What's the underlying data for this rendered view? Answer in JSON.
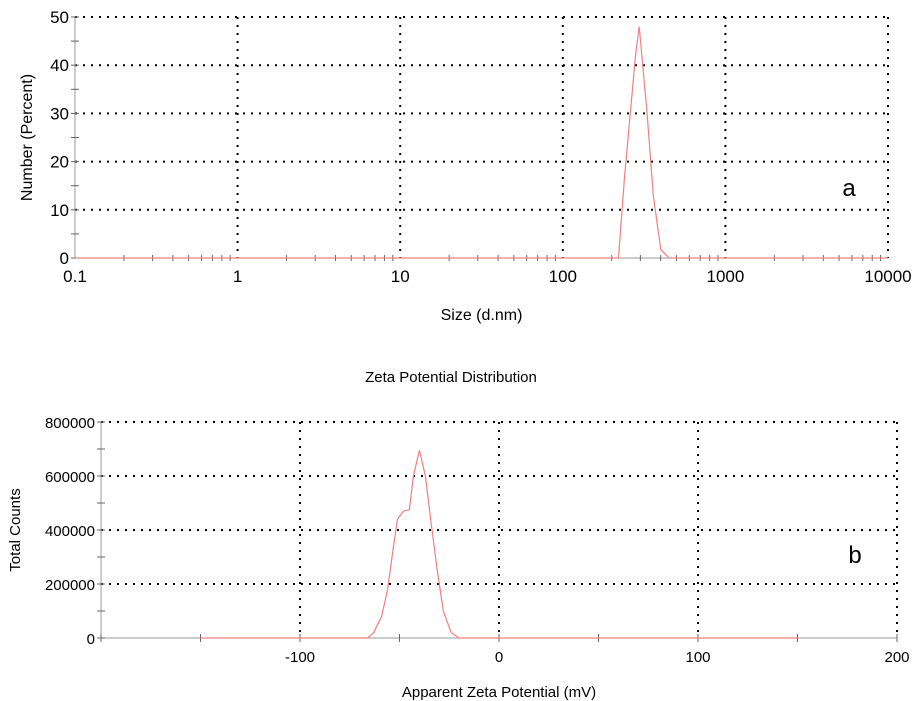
{
  "colors": {
    "series": "#f08080",
    "grid": "#000000",
    "axis": "#000000",
    "background": "#ffffff"
  },
  "chart_data": [
    {
      "type": "line",
      "panel_label": "a",
      "title": "",
      "xlabel": "Size (d.nm)",
      "ylabel": "Number (Percent)",
      "x_scale": "log",
      "xlim": [
        0.1,
        10000
      ],
      "ylim": [
        0,
        50
      ],
      "x_ticks": [
        0.1,
        1,
        10,
        100,
        1000,
        10000
      ],
      "x_tick_labels": [
        "0.1",
        "1",
        "10",
        "100",
        "1000",
        "10000"
      ],
      "y_ticks": [
        0,
        10,
        20,
        30,
        40,
        50
      ],
      "y_tick_labels": [
        "0",
        "10",
        "20",
        "30",
        "40",
        "50"
      ],
      "grid": true,
      "legend": "none",
      "series": [
        {
          "x": [
            0.1,
            220,
            240,
            280,
            295,
            330,
            360,
            400,
            450,
            10000
          ],
          "y": [
            0,
            0,
            17,
            42,
            48,
            30,
            13,
            1.8,
            0,
            0
          ]
        }
      ]
    },
    {
      "type": "line",
      "panel_label": "b",
      "title": "Zeta Potential Distribution",
      "xlabel": "Apparent Zeta Potential (mV)",
      "ylabel": "Total Counts",
      "x_scale": "linear",
      "xlim": [
        -200,
        200
      ],
      "ylim": [
        0,
        800000
      ],
      "x_ticks": [
        -100,
        0,
        100,
        200
      ],
      "x_tick_labels": [
        "-100",
        "0",
        "100",
        "200"
      ],
      "y_ticks": [
        0,
        200000,
        400000,
        600000,
        800000
      ],
      "y_tick_labels": [
        "0",
        "200000",
        "400000",
        "600000",
        "800000"
      ],
      "grid": true,
      "legend": "none",
      "series": [
        {
          "x": [
            -150,
            -66,
            -63,
            -59,
            -56,
            -53,
            -51,
            -48,
            -45,
            -43,
            -40,
            -37,
            -34,
            -31,
            -28,
            -24,
            -20,
            150
          ],
          "y": [
            0,
            0,
            20000,
            80000,
            180000,
            340000,
            440000,
            470000,
            475000,
            600000,
            695000,
            600000,
            420000,
            250000,
            100000,
            20000,
            0,
            0
          ]
        }
      ]
    }
  ]
}
